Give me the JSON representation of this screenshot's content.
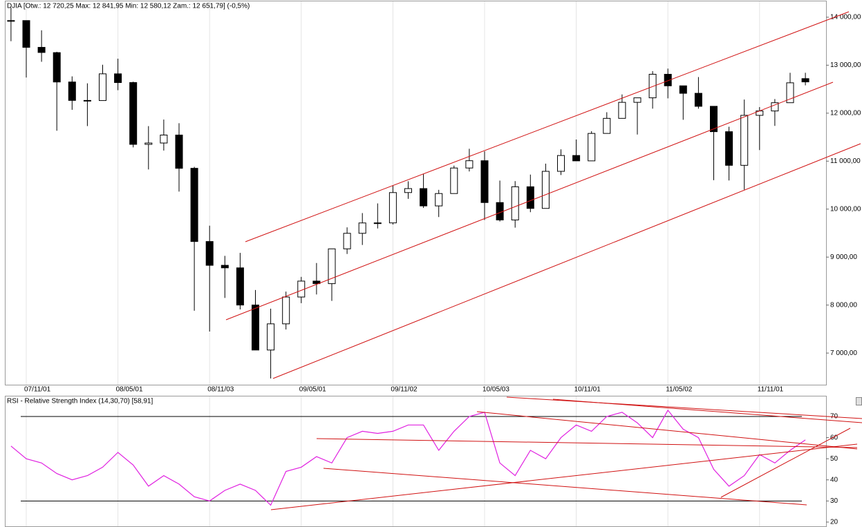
{
  "chart_data": [
    {
      "type": "candlestick",
      "title": "DJIA [Otw.: 12 720,25  Max: 12 841,95  Min: 12 580,12  Zam.: 12 651,79]  (-0,5%)",
      "categories": [
        null,
        "07/11/01",
        null,
        null,
        null,
        null,
        null,
        "08/05/01",
        null,
        null,
        null,
        null,
        null,
        "08/11/03",
        null,
        null,
        null,
        null,
        null,
        "09/05/01",
        null,
        null,
        null,
        null,
        null,
        "09/11/02",
        null,
        null,
        null,
        null,
        null,
        "10/05/03",
        null,
        null,
        null,
        null,
        null,
        "10/11/01",
        null,
        null,
        null,
        null,
        null,
        "11/05/02",
        null,
        null,
        null,
        null,
        null,
        "11/11/01",
        null,
        null,
        null
      ],
      "open": [
        13930,
        13930,
        13372,
        13262,
        12650,
        12266,
        12263,
        12820,
        12638,
        11350,
        11378,
        11544,
        10851,
        9325,
        8829,
        8776,
        8001,
        7063,
        7609,
        8168,
        8500,
        8447,
        9172,
        9496,
        9712,
        9713,
        10345,
        10428,
        10067,
        10325,
        10857,
        11009,
        10137,
        9774,
        10466,
        10015,
        10788,
        11118,
        11006,
        11578,
        11892,
        12226,
        12320,
        12811,
        12570,
        12414,
        12143,
        11614,
        10913,
        11955,
        12046,
        12218,
        12720.25
      ],
      "high": [
        14198,
        13930,
        13727,
        13279,
        12767,
        12622,
        13010,
        13136,
        12657,
        11730,
        11867,
        11790,
        10882,
        9654,
        9026,
        9088,
        8315,
        7925,
        8281,
        8588,
        8877,
        9173,
        9620,
        9918,
        10119,
        10496,
        10580,
        10729,
        10402,
        10907,
        11258,
        11205,
        10595,
        10584,
        10720,
        10948,
        11246,
        11451,
        11625,
        12020,
        12391,
        12283,
        12876,
        12929,
        12570,
        12753,
        12143,
        11717,
        12284,
        12127,
        12294,
        12842,
        12841.95
      ],
      "low": [
        13500,
        12743,
        13071,
        11634,
        12070,
        11731,
        12266,
        12479,
        11287,
        10827,
        11221,
        10365,
        7882,
        7449,
        8149,
        7909,
        7114,
        6470,
        7491,
        8040,
        8221,
        8087,
        9065,
        9253,
        9597,
        9678,
        10215,
        10025,
        9835,
        10325,
        10785,
        9774,
        9742,
        9614,
        9936,
        10015,
        10712,
        11006,
        11006,
        11578,
        11892,
        11555,
        12094,
        12309,
        11862,
        12093,
        10604,
        10597,
        10405,
        11231,
        11735,
        12218,
        12580.12
      ],
      "close": [
        13930,
        13372,
        13265,
        12650,
        12266,
        12263,
        12820,
        12638,
        11350,
        11378,
        11544,
        10851,
        9325,
        8829,
        8776,
        8001,
        7063,
        7609,
        8168,
        8500,
        8447,
        9172,
        9496,
        9712,
        9713,
        10345,
        10428,
        10067,
        10325,
        10857,
        11009,
        10137,
        9774,
        10466,
        10015,
        10788,
        11118,
        11006,
        11578,
        11892,
        12226,
        12320,
        12811,
        12570,
        12414,
        12143,
        11614,
        10913,
        11955,
        12046,
        12218,
        12633,
        12651.79
      ],
      "ylim": [
        6340,
        14330
      ],
      "yticks": [
        {
          "value": 7000,
          "label": "7 000,00"
        },
        {
          "value": 8000,
          "label": "8 000,00"
        },
        {
          "value": 9000,
          "label": "9 000,00"
        },
        {
          "value": 10000,
          "label": "10 000,00"
        },
        {
          "value": 11000,
          "label": "11 000,00"
        },
        {
          "value": 12000,
          "label": "12 000,00"
        },
        {
          "value": 13000,
          "label": "13 000,00"
        },
        {
          "value": 14000,
          "label": "14 000,00"
        }
      ],
      "grid": true
    },
    {
      "type": "line",
      "title": "RSI - Relative Strength Index (14,30,70) [58,91]",
      "color": "#e020e0",
      "values": [
        56,
        50,
        48,
        43,
        40,
        42,
        46,
        53,
        47,
        37,
        42,
        38,
        32,
        30,
        35,
        38,
        35,
        28,
        44,
        46,
        51,
        48,
        60,
        63,
        62,
        63,
        66,
        66,
        54,
        63,
        70,
        72,
        48,
        42,
        54,
        50,
        60,
        66,
        63,
        70,
        72,
        67,
        60,
        73,
        64,
        60,
        45,
        37,
        42,
        52,
        48,
        54,
        58.91
      ],
      "ylim": [
        18,
        79.5
      ],
      "yticks": [
        20,
        30,
        40,
        50,
        60,
        70
      ]
    }
  ]
}
